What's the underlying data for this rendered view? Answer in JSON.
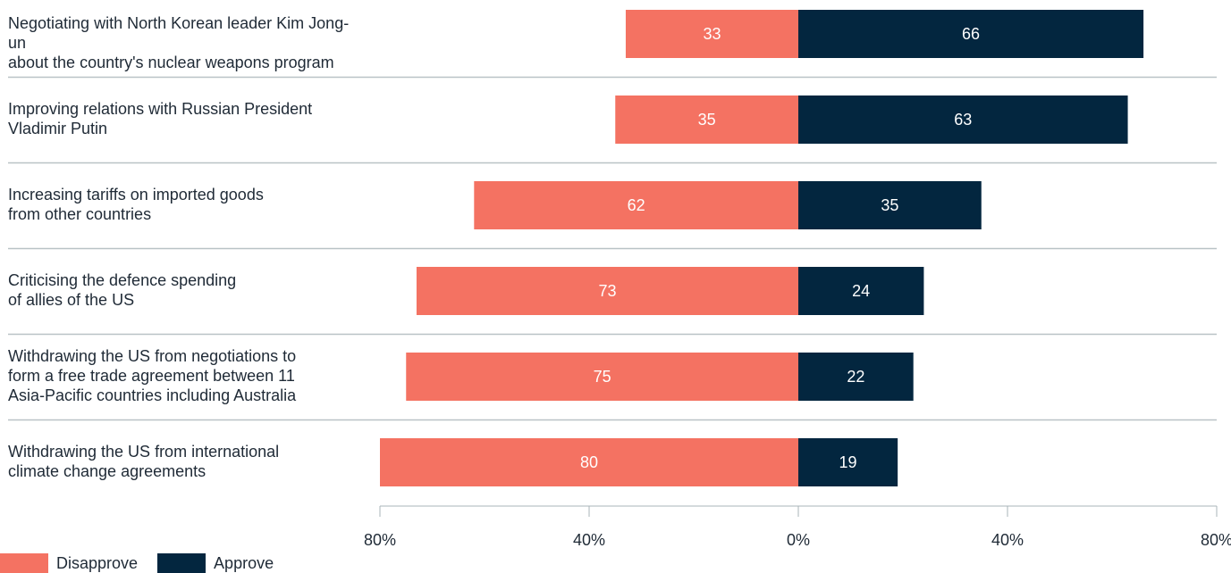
{
  "colors": {
    "disapprove": "#f47262",
    "approve": "#03263f",
    "divider": "#b9c2c6",
    "axis": "#aab4b9",
    "text": "#1f2a36"
  },
  "legend": [
    {
      "name": "Disapprove",
      "color": "#f47262"
    },
    {
      "name": "Approve",
      "color": "#03263f"
    }
  ],
  "chart_data": {
    "type": "bar",
    "orientation": "horizontal-diverging",
    "categories": [
      [
        "Negotiating with North Korean leader Kim Jong-un",
        "about the country's nuclear weapons program"
      ],
      [
        "Improving relations with Russian President",
        "Vladimir Putin"
      ],
      [
        "Increasing tariffs on imported goods",
        "from other countries"
      ],
      [
        "Criticising the defence spending",
        "of allies of the US"
      ],
      [
        "Withdrawing the US from negotiations to",
        "form a free trade agreement between 11",
        "Asia-Pacific countries including Australia"
      ],
      [
        "Withdrawing the US from international",
        "climate change agreements"
      ]
    ],
    "series": [
      {
        "name": "Disapprove",
        "values": [
          33,
          35,
          62,
          73,
          75,
          80
        ]
      },
      {
        "name": "Approve",
        "values": [
          66,
          63,
          35,
          24,
          22,
          19
        ]
      }
    ],
    "xlim": [
      -80,
      80
    ],
    "x_ticks": [
      -80,
      -40,
      0,
      40,
      80
    ],
    "x_tick_labels": [
      "80%",
      "40%",
      "0%",
      "40%",
      "80%"
    ],
    "legend_position": "bottom-left",
    "grid": false
  }
}
